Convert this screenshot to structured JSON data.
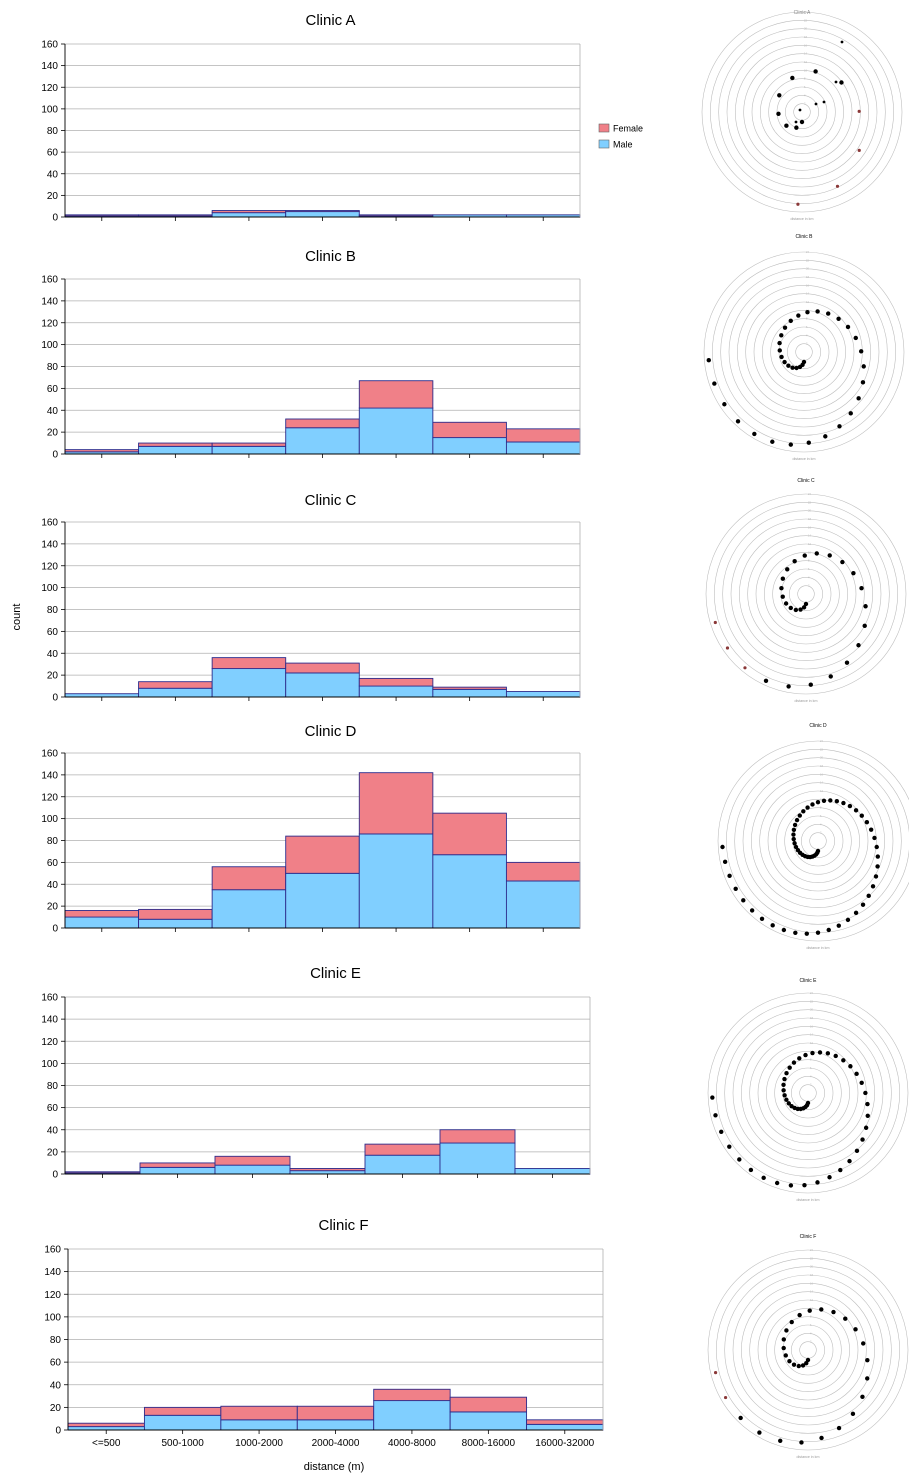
{
  "chart_data": [
    {
      "type": "bar",
      "title": "Clinic A",
      "categories": [
        "<=500",
        "500-1000",
        "1000-2000",
        "2000-4000",
        "4000-8000",
        "8000-16000",
        "16000-32000"
      ],
      "series": [
        {
          "name": "Male",
          "values": [
            1,
            1,
            4,
            5,
            1,
            2,
            2
          ]
        },
        {
          "name": "Female",
          "values": [
            1,
            1,
            2,
            1,
            1,
            0,
            0
          ]
        }
      ],
      "ylim": [
        0,
        160
      ],
      "yticks": [
        0,
        20,
        40,
        60,
        80,
        100,
        120,
        140,
        160
      ],
      "stacked": true,
      "legend": "right",
      "grid": true
    },
    {
      "type": "bar",
      "title": "Clinic B",
      "categories": [
        "<=500",
        "500-1000",
        "1000-2000",
        "2000-4000",
        "4000-8000",
        "8000-16000",
        "16000-32000"
      ],
      "series": [
        {
          "name": "Male",
          "values": [
            2,
            7,
            7,
            24,
            42,
            15,
            11
          ]
        },
        {
          "name": "Female",
          "values": [
            2,
            3,
            3,
            8,
            25,
            14,
            12
          ]
        }
      ],
      "ylim": [
        0,
        160
      ],
      "yticks": [
        0,
        20,
        40,
        60,
        80,
        100,
        120,
        140,
        160
      ],
      "stacked": true,
      "grid": true
    },
    {
      "type": "bar",
      "title": "Clinic C",
      "categories": [
        "<=500",
        "500-1000",
        "1000-2000",
        "2000-4000",
        "4000-8000",
        "8000-16000",
        "16000-32000"
      ],
      "series": [
        {
          "name": "Male",
          "values": [
            3,
            8,
            26,
            22,
            10,
            7,
            5
          ]
        },
        {
          "name": "Female",
          "values": [
            0,
            6,
            10,
            9,
            7,
            2,
            0
          ]
        }
      ],
      "ylim": [
        0,
        160
      ],
      "yticks": [
        0,
        20,
        40,
        60,
        80,
        100,
        120,
        140,
        160
      ],
      "ylabel": "count",
      "stacked": true,
      "grid": true
    },
    {
      "type": "bar",
      "title": "Clinic D",
      "categories": [
        "<=500",
        "500-1000",
        "1000-2000",
        "2000-4000",
        "4000-8000",
        "8000-16000",
        "16000-32000"
      ],
      "series": [
        {
          "name": "Male",
          "values": [
            10,
            8,
            35,
            50,
            86,
            67,
            43
          ]
        },
        {
          "name": "Female",
          "values": [
            6,
            9,
            21,
            34,
            56,
            38,
            17
          ]
        }
      ],
      "ylim": [
        0,
        160
      ],
      "yticks": [
        0,
        20,
        40,
        60,
        80,
        100,
        120,
        140,
        160
      ],
      "stacked": true,
      "grid": true
    },
    {
      "type": "bar",
      "title": "Clinic E",
      "categories": [
        "<=500",
        "500-1000",
        "1000-2000",
        "2000-4000",
        "4000-8000",
        "8000-16000",
        "16000-32000"
      ],
      "series": [
        {
          "name": "Male",
          "values": [
            1,
            6,
            8,
            3,
            17,
            28,
            5
          ]
        },
        {
          "name": "Female",
          "values": [
            1,
            4,
            8,
            2,
            10,
            12,
            0
          ]
        }
      ],
      "ylim": [
        0,
        160
      ],
      "yticks": [
        0,
        20,
        40,
        60,
        80,
        100,
        120,
        140,
        160
      ],
      "stacked": true,
      "grid": true
    },
    {
      "type": "bar",
      "title": "Clinic F",
      "categories": [
        "<=500",
        "500-1000",
        "1000-2000",
        "2000-4000",
        "4000-8000",
        "8000-16000",
        "16000-32000"
      ],
      "series": [
        {
          "name": "Male",
          "values": [
            3,
            13,
            9,
            9,
            26,
            16,
            5
          ]
        },
        {
          "name": "Female",
          "values": [
            3,
            7,
            12,
            12,
            10,
            13,
            4
          ]
        }
      ],
      "ylim": [
        0,
        160
      ],
      "yticks": [
        0,
        20,
        40,
        60,
        80,
        100,
        120,
        140,
        160
      ],
      "xlabel": "distance (m)",
      "stacked": true,
      "grid": true
    },
    {
      "type": "scatter",
      "title": "Clinic A",
      "polar": true,
      "caption": "distance in km",
      "rings": 12,
      "points_note": "few scattered points, inner spiral",
      "count": 12
    },
    {
      "type": "scatter",
      "title": "Clinic B",
      "polar": true,
      "caption": "distance in km",
      "rings": 12,
      "count": 60
    },
    {
      "type": "scatter",
      "title": "Clinic C",
      "polar": true,
      "caption": "distance in km",
      "rings": 12,
      "count": 40
    },
    {
      "type": "scatter",
      "title": "Clinic D",
      "polar": true,
      "caption": "distance in km",
      "rings": 12,
      "count": 110
    },
    {
      "type": "scatter",
      "title": "Clinic E",
      "polar": true,
      "caption": "distance in km",
      "rings": 12,
      "count": 90
    },
    {
      "type": "scatter",
      "title": "Clinic F",
      "polar": true,
      "caption": "distance in km",
      "rings": 12,
      "count": 45
    }
  ],
  "colors": {
    "female": "#f08088",
    "male": "#80cfff",
    "outline": "#2c2c8c",
    "grid": "#b0b0b0"
  }
}
